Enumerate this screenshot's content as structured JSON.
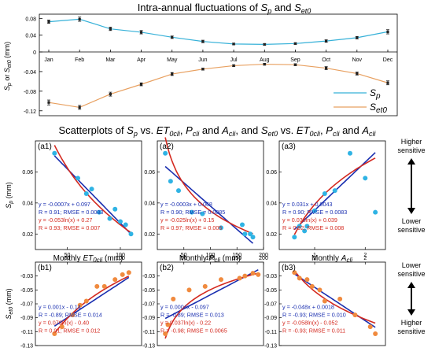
{
  "top_title": {
    "prefix": "Intra-annual fluctuations of ",
    "sym1": "S",
    "sym1_sub": "p",
    "mid": " and ",
    "sym2": "S",
    "sym2_sub": "et0"
  },
  "top_ylabel": "S_p or S_et0 (mm)",
  "section2_title": "Scatterplots of Sp vs. ET0cli, Pcli and Acli, and Set0 vs. ET0cli, Pcli and Acli",
  "section2_title_parts": [
    {
      "t": "Scatterplots of ",
      "i": false,
      "sub": false
    },
    {
      "t": "S",
      "i": true,
      "sub": false
    },
    {
      "t": "p",
      "i": true,
      "sub": true
    },
    {
      "t": " vs. ",
      "i": false,
      "sub": false
    },
    {
      "t": "ET",
      "i": true,
      "sub": false
    },
    {
      "t": "0cli",
      "i": true,
      "sub": true
    },
    {
      "t": ", ",
      "i": false,
      "sub": false
    },
    {
      "t": "P",
      "i": true,
      "sub": false
    },
    {
      "t": "cli",
      "i": true,
      "sub": true
    },
    {
      "t": " and ",
      "i": false,
      "sub": false
    },
    {
      "t": "A",
      "i": true,
      "sub": false
    },
    {
      "t": "cli",
      "i": true,
      "sub": true
    },
    {
      "t": ", and ",
      "i": false,
      "sub": false
    },
    {
      "t": "S",
      "i": true,
      "sub": false
    },
    {
      "t": "et0",
      "i": true,
      "sub": true
    },
    {
      "t": " vs. ",
      "i": false,
      "sub": false
    },
    {
      "t": "ET",
      "i": true,
      "sub": false
    },
    {
      "t": "0cli",
      "i": true,
      "sub": true
    },
    {
      "t": ", ",
      "i": false,
      "sub": false
    },
    {
      "t": "P",
      "i": true,
      "sub": false
    },
    {
      "t": "cli",
      "i": true,
      "sub": true
    },
    {
      "t": " and ",
      "i": false,
      "sub": false
    },
    {
      "t": "A",
      "i": true,
      "sub": false
    },
    {
      "t": "cli",
      "i": true,
      "sub": true
    }
  ],
  "sensitivity": {
    "top": [
      "Higher",
      "sensitive",
      "Lower",
      "sensitive"
    ],
    "bottom": [
      "Lower",
      "sensitive",
      "Higher",
      "sensitive"
    ]
  },
  "colors": {
    "sp": "#36b1d8",
    "set0": "#e8a060",
    "blue_fit": "#1a2fb0",
    "red_fit": "#d42a20",
    "scatter_sp": "#2fb3e4",
    "scatter_set0": "#f08a3e"
  },
  "chart_data": [
    {
      "id": "top",
      "type": "line",
      "title": "Intra-annual fluctuations of Sp and Set0",
      "categories": [
        "Jan",
        "Feb",
        "Mar",
        "Apr",
        "May",
        "Jun",
        "Jul",
        "Aug",
        "Sep",
        "Oct",
        "Nov",
        "Dec"
      ],
      "ylabel": "Sp or Set0 (mm)",
      "ylim_upper": [
        0,
        0.09
      ],
      "ylim_lower": [
        -0.13,
        0
      ],
      "yticks_upper": [
        "0.08",
        "0.04",
        "0"
      ],
      "yticks_lower": [
        "-0.04",
        "-0.08",
        "-0.12"
      ],
      "series": [
        {
          "name": "Sp",
          "legend_main": "S",
          "legend_sub": "p",
          "values": [
            0.072,
            0.078,
            0.055,
            0.047,
            0.035,
            0.025,
            0.019,
            0.018,
            0.02,
            0.026,
            0.034,
            0.048
          ],
          "err": [
            0.004,
            0.005,
            0.004,
            0.004,
            0.003,
            0.003,
            0.002,
            0.002,
            0.002,
            0.003,
            0.003,
            0.005
          ]
        },
        {
          "name": "Set0",
          "legend_main": "S",
          "legend_sub": "et0",
          "values": [
            -0.103,
            -0.113,
            -0.086,
            -0.066,
            -0.045,
            -0.035,
            -0.028,
            -0.025,
            -0.026,
            -0.033,
            -0.044,
            -0.063
          ],
          "err": [
            0.005,
            0.004,
            0.004,
            0.003,
            0.003,
            0.002,
            0.002,
            0.002,
            0.002,
            0.003,
            0.003,
            0.004
          ]
        }
      ]
    },
    {
      "id": "a1",
      "type": "scatter",
      "label": "(a1)",
      "x": [
        38,
        60,
        68,
        73,
        80,
        90,
        95,
        100,
        105,
        110
      ],
      "y": [
        0.072,
        0.056,
        0.046,
        0.049,
        0.034,
        0.03,
        0.036,
        0.028,
        0.026,
        0.02
      ],
      "xlim": [
        20,
        120
      ],
      "ylim": [
        0.01,
        0.08
      ],
      "xticks": [
        50,
        100
      ],
      "yticks": [
        0.06,
        0.04,
        0.02
      ],
      "ytick_labels": [
        "0.06",
        "0.04",
        "0.02"
      ],
      "ylabel": "Sp (mm)",
      "fits": [
        {
          "kind": "linear",
          "color": "blue",
          "eq": "y = -0.0007x + 0.097",
          "stats": "R = 0.91; RMSE = 0.0083",
          "a": -0.0007,
          "b": 0.097
        },
        {
          "kind": "log",
          "color": "red",
          "eq": "y = -0.053ln(x) + 0.27",
          "stats": "R = 0.93; RMSE = 0.007",
          "a": -0.053,
          "b": 0.27
        }
      ]
    },
    {
      "id": "a2",
      "type": "scatter",
      "label": "(a2)",
      "x": [
        15,
        25,
        40,
        65,
        85,
        120,
        160,
        165,
        175,
        180
      ],
      "y": [
        0.072,
        0.054,
        0.048,
        0.034,
        0.033,
        0.024,
        0.026,
        0.02,
        0.02,
        0.018
      ],
      "xlim": [
        0,
        200
      ],
      "ylim": [
        0.01,
        0.08
      ],
      "xticks": [
        50,
        100,
        150,
        200
      ],
      "yticks": [
        0.06,
        0.04,
        0.02
      ],
      "ytick_labels": [
        "0.06",
        "0.04",
        "0.02"
      ],
      "fits": [
        {
          "kind": "linear",
          "color": "blue",
          "eq": "y = -0.0003x + 0.068",
          "stats": "R = 0.90; RMSE = 0.0085",
          "a": -0.0003,
          "b": 0.068
        },
        {
          "kind": "log",
          "color": "red",
          "eq": "y = -0.025ln(x) + 0.15",
          "stats": "R = 0.97; RMSE = 0.005",
          "a": -0.025,
          "b": 0.15
        }
      ]
    },
    {
      "id": "a3",
      "type": "scatter",
      "label": "(a3)",
      "x": [
        0.6,
        0.7,
        0.8,
        0.85,
        1.0,
        1.2,
        1.4,
        1.7,
        2.0,
        2.2
      ],
      "y": [
        0.018,
        0.025,
        0.022,
        0.025,
        0.035,
        0.046,
        0.048,
        0.072,
        0.056,
        0.034
      ],
      "xlim": [
        0.3,
        2.4
      ],
      "ylim": [
        0.01,
        0.08
      ],
      "xticks": [
        1,
        2
      ],
      "yticks": [
        0.06,
        0.04,
        0.02
      ],
      "ytick_labels": [
        "0.06",
        "0.04",
        "0.02"
      ],
      "fits": [
        {
          "kind": "linear",
          "color": "blue",
          "eq": "y = 0.031x + 0.0043",
          "stats": "R = 0.90; RMSE = 0.0083",
          "a": 0.031,
          "b": 0.0043
        },
        {
          "kind": "log",
          "color": "red",
          "eq": "y = 0.038ln(x) + 0.039",
          "stats": "R = 0.92; RMSE = 0.008",
          "a": 0.038,
          "b": 0.039
        }
      ]
    },
    {
      "id": "b1",
      "type": "scatter",
      "label": "(b1)",
      "x": [
        38,
        45,
        55,
        62,
        68,
        78,
        85,
        95,
        102,
        108
      ],
      "y": [
        -0.113,
        -0.103,
        -0.086,
        -0.072,
        -0.066,
        -0.045,
        -0.045,
        -0.035,
        -0.028,
        -0.025
      ],
      "xlim": [
        20,
        120
      ],
      "ylim": [
        -0.13,
        -0.01
      ],
      "xticks": [
        50,
        100
      ],
      "yticks": [
        -0.03,
        -0.05,
        -0.07,
        -0.09,
        -0.11,
        -0.13
      ],
      "ytick_labels": [
        "-0.03",
        "-0.05",
        "-0.07",
        "-0.09",
        "-0.11",
        "-0.13"
      ],
      "ylabel": "Set0 (mm)",
      "fits": [
        {
          "kind": "linear",
          "color": "blue",
          "eq": "y = 0.001x - 0.14",
          "stats": "R = -0.89; RMSE = 0.014",
          "a": 0.001,
          "b": -0.14
        },
        {
          "kind": "log",
          "color": "red",
          "eq": "y = 0.079ln(x) - 0.40",
          "stats": "R = 0.91; RMSE = 0.012",
          "a": 0.079,
          "b": -0.4
        }
      ]
    },
    {
      "id": "b2",
      "type": "scatter",
      "label": "(b2)",
      "x": [
        15,
        20,
        30,
        60,
        90,
        120,
        155,
        165,
        180,
        190
      ],
      "y": [
        -0.113,
        -0.1,
        -0.063,
        -0.05,
        -0.045,
        -0.035,
        -0.033,
        -0.03,
        -0.026,
        -0.028
      ],
      "xlim": [
        0,
        200
      ],
      "ylim": [
        -0.13,
        -0.01
      ],
      "xticks": [
        50,
        100,
        150,
        200
      ],
      "yticks": [
        -0.03,
        -0.05,
        -0.07,
        -0.09,
        -0.11,
        -0.13
      ],
      "ytick_labels": [
        "-0.03",
        "-0.05",
        "-0.07",
        "-0.09",
        "-0.11",
        "-0.13"
      ],
      "fits": [
        {
          "kind": "linear",
          "color": "blue",
          "eq": "y = 0.0004x - 0.097",
          "stats": "R = -0.89; RMSE = 0.013",
          "a": 0.0004,
          "b": -0.097
        },
        {
          "kind": "log",
          "color": "red",
          "eq": "y = 0.037ln(x) - 0.22",
          "stats": "R = -0.98; RMSE = 0.0065",
          "a": 0.037,
          "b": -0.22
        }
      ]
    },
    {
      "id": "b3",
      "type": "scatter",
      "label": "(b3)",
      "x": [
        0.6,
        0.7,
        0.85,
        0.95,
        1.1,
        1.2,
        1.5,
        1.8,
        2.1,
        2.2
      ],
      "y": [
        -0.025,
        -0.033,
        -0.035,
        -0.045,
        -0.05,
        -0.066,
        -0.063,
        -0.086,
        -0.103,
        -0.113
      ],
      "xlim": [
        0.3,
        2.4
      ],
      "ylim": [
        -0.13,
        -0.01
      ],
      "xticks": [
        1,
        2
      ],
      "yticks": [
        -0.03,
        -0.05,
        -0.07,
        -0.09,
        -0.11,
        -0.13
      ],
      "ytick_labels": [
        "-0.03",
        "-0.05",
        "-0.07",
        "-0.09",
        "-0.11",
        "-0.13"
      ],
      "fits": [
        {
          "kind": "linear",
          "color": "blue",
          "eq": "y = -0.048x + 0.0018",
          "stats": "R = -0.93; RMSE = 0.010",
          "a": -0.048,
          "b": 0.0018
        },
        {
          "kind": "log",
          "color": "red",
          "eq": "y = -0.058ln(x) - 0.052",
          "stats": "R = -0.93; RMSE = 0.011",
          "a": -0.058,
          "b": -0.052
        }
      ]
    }
  ],
  "mid_xlabels": [
    {
      "main": "Monthly ",
      "sym": "ET",
      "sub": "0cli",
      "unit": " (mm)"
    },
    {
      "main": "Monthly ",
      "sym": "P",
      "sub": "cli",
      "unit": " (mm)"
    },
    {
      "main": "Monthly ",
      "sym": "A",
      "sub": "cli",
      "unit": ""
    }
  ]
}
